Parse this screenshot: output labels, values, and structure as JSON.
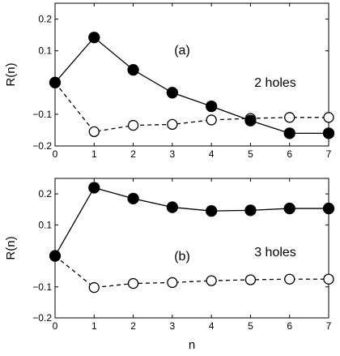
{
  "chart_data": [
    {
      "type": "line",
      "panel_label": "(a)",
      "annotation": "2 holes",
      "ylabel": "R(n)",
      "xlabel": "",
      "xlim": [
        0,
        7
      ],
      "ylim": [
        -0.2,
        0.25
      ],
      "x_ticks": [
        0,
        1,
        2,
        3,
        4,
        5,
        6,
        7
      ],
      "y_ticks": [
        -0.2,
        -0.1,
        0.1,
        0.2
      ],
      "y_tick_labels": [
        "−0.2",
        "−0.1",
        "0.1",
        "0.2"
      ],
      "x": [
        0,
        1,
        2,
        3,
        4,
        5,
        6,
        7
      ],
      "series": [
        {
          "style": "solid, filled circles",
          "values": [
            0.0,
            0.142,
            0.04,
            -0.032,
            -0.075,
            -0.12,
            -0.16,
            -0.16
          ]
        },
        {
          "style": "dashed, open circles",
          "values": [
            0.0,
            -0.155,
            -0.135,
            -0.132,
            -0.118,
            -0.113,
            -0.11,
            -0.11
          ]
        }
      ]
    },
    {
      "type": "line",
      "panel_label": "(b)",
      "annotation": "3 holes",
      "ylabel": "R(n)",
      "xlabel": "n",
      "xlim": [
        0,
        7
      ],
      "ylim": [
        -0.2,
        0.25
      ],
      "x_ticks": [
        0,
        1,
        2,
        3,
        4,
        5,
        6,
        7
      ],
      "y_ticks": [
        -0.2,
        -0.1,
        0.1,
        0.2
      ],
      "y_tick_labels": [
        "−0.2",
        "−0.1",
        "0.1",
        "0.2"
      ],
      "x": [
        0,
        1,
        2,
        3,
        4,
        5,
        6,
        7
      ],
      "series": [
        {
          "style": "solid, filled circles",
          "values": [
            0.0,
            0.22,
            0.185,
            0.157,
            0.145,
            0.147,
            0.153,
            0.153
          ]
        },
        {
          "style": "dashed, open circles",
          "values": [
            0.0,
            -0.102,
            -0.089,
            -0.086,
            -0.08,
            -0.077,
            -0.075,
            -0.075
          ]
        }
      ]
    }
  ]
}
